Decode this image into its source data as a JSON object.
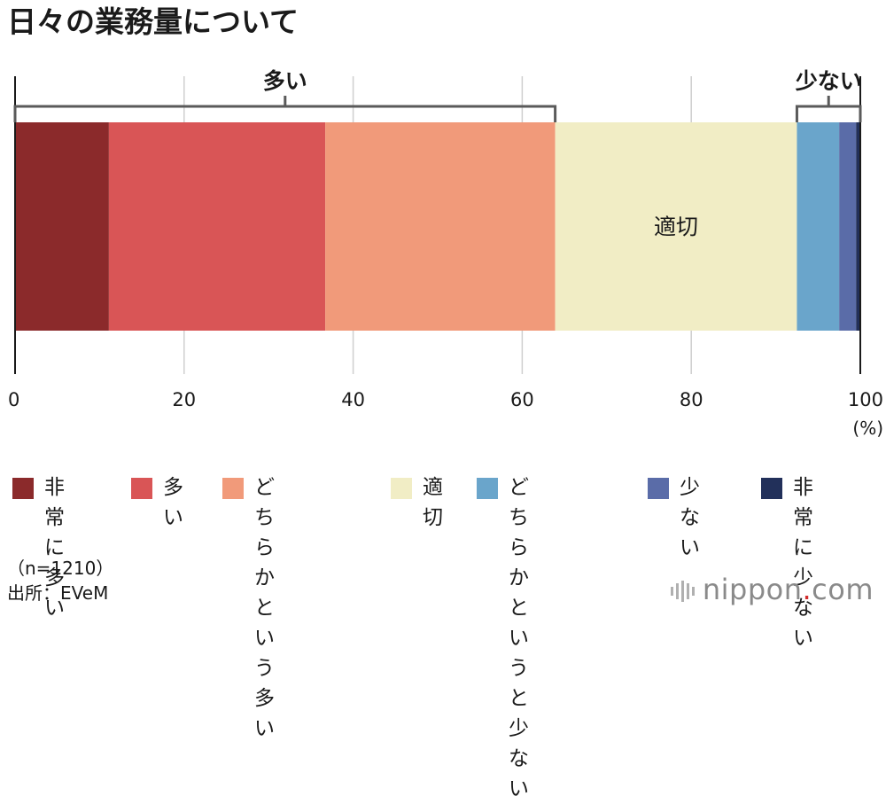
{
  "title": "日々の業務量について",
  "chart_data": {
    "type": "bar",
    "orientation": "horizontal-stacked",
    "xlim": [
      0,
      100
    ],
    "x_ticks": [
      "0",
      "20",
      "40",
      "60",
      "80",
      "100"
    ],
    "x_unit": "(%)",
    "grid": true,
    "series": [
      {
        "name": "非常に\n多い",
        "value": 11.1,
        "color": "#8b2a2b"
      },
      {
        "name": "多い",
        "value": 25.6,
        "color": "#d95556"
      },
      {
        "name": "どちらかと\nいう多い",
        "value": 27.2,
        "color": "#f19a7a"
      },
      {
        "name": "適切",
        "value": 28.6,
        "color": "#f1edc5"
      },
      {
        "name": "どちらかと\nいうと少ない",
        "value": 5.0,
        "color": "#6aa5cb"
      },
      {
        "name": "少ない",
        "value": 2.0,
        "color": "#5a6ca8"
      },
      {
        "name": "非常に\n少ない",
        "value": 0.5,
        "color": "#22305a"
      }
    ],
    "segment_labels": [
      {
        "series": 3,
        "text": "適切"
      }
    ],
    "brackets": [
      {
        "label": "多い",
        "from": 0,
        "to": 63.9
      },
      {
        "label": "少ない",
        "from": 92.5,
        "to": 100
      }
    ]
  },
  "footnote": {
    "n": "（n=1210）",
    "source": "出所：EVeM"
  },
  "brand": {
    "name": "nippon",
    "dot": ".",
    "tld": "com"
  }
}
